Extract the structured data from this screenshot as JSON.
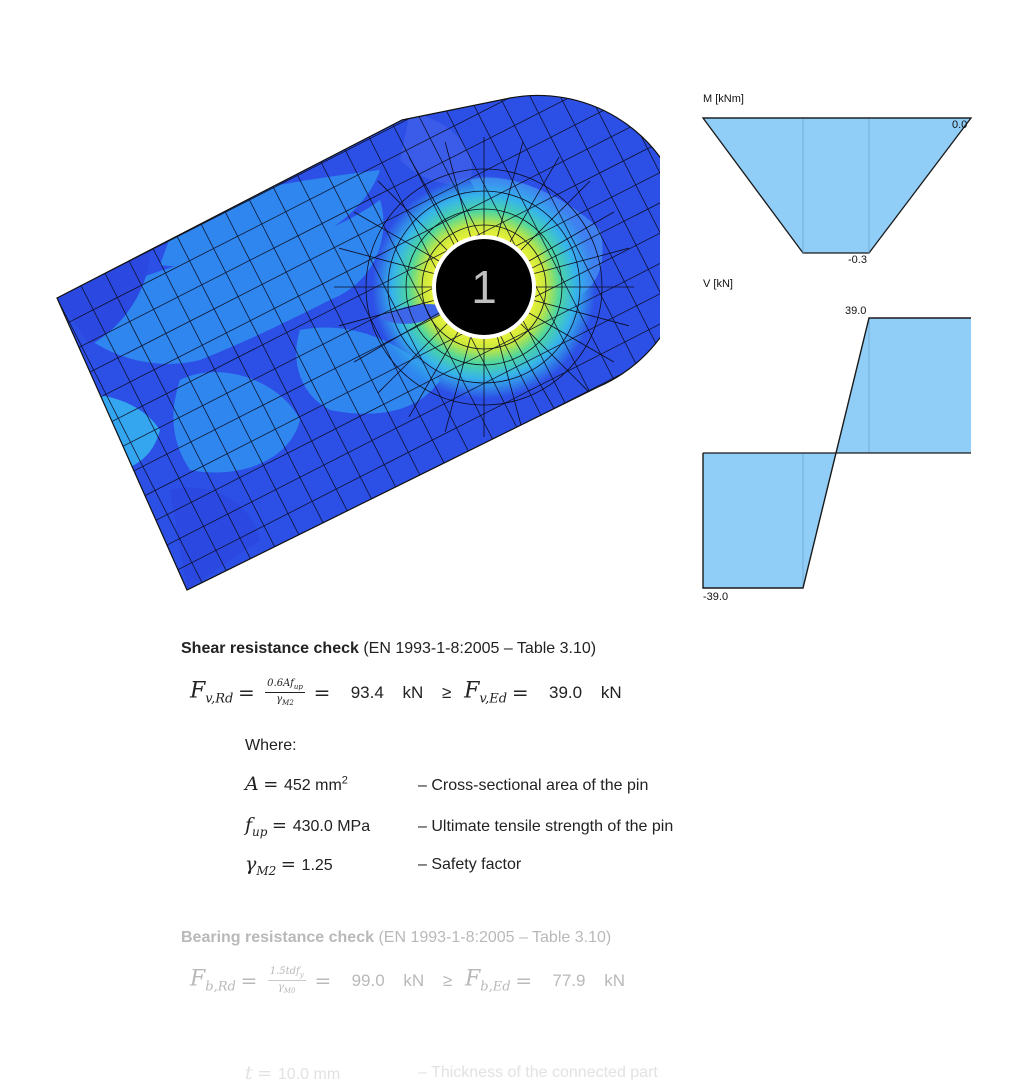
{
  "fea": {
    "node_label": "1"
  },
  "moment_diagram": {
    "axis_label": "M [kNm]",
    "values": {
      "max": "0.0",
      "min": "-0.3"
    }
  },
  "shear_diagram": {
    "axis_label": "V [kN]",
    "values": {
      "max": "39.0",
      "min": "-39.0"
    }
  },
  "shear_check": {
    "title": "Shear resistance check",
    "reference": " (EN 1993-1-8:2005 – Table 3.10)",
    "lhs_symbol": "F",
    "lhs_sub": "v,Rd",
    "frac_num": "0.6Af",
    "frac_num_sub": "up",
    "frac_den": "γ",
    "frac_den_sub": "M2",
    "resistance": "93.4",
    "unit1": "kN",
    "relation": "≥",
    "rhs_symbol": "F",
    "rhs_sub": "v,Ed",
    "effect": "39.0",
    "unit2": "kN",
    "where_label": "Where:",
    "params": [
      {
        "symbol": "A",
        "sub": "",
        "value": "452 mm",
        "sup": "2",
        "desc": "– Cross-sectional area of the pin"
      },
      {
        "symbol": "f",
        "sub": "up",
        "value": "430.0 MPa",
        "sup": "",
        "desc": "– Ultimate tensile strength of the pin"
      },
      {
        "symbol": "γ",
        "sub": "M2",
        "value": "1.25",
        "sup": "",
        "desc": "– Safety factor"
      }
    ]
  },
  "bearing_check": {
    "title": "Bearing resistance check",
    "reference": " (EN 1993-1-8:2005 – Table 3.10)",
    "lhs_symbol": "F",
    "lhs_sub": "b,Rd",
    "frac_num": "1.5tdf",
    "frac_num_sub": "y",
    "frac_den": "γ",
    "frac_den_sub": "M0",
    "resistance": "99.0",
    "unit1": "kN",
    "relation": "≥",
    "rhs_symbol": "F",
    "rhs_sub": "b,Ed",
    "effect": "77.9",
    "unit2": "kN",
    "param": {
      "symbol": "t",
      "value": "10.0 mm",
      "desc": "– Thickness of the connected part"
    }
  },
  "colors": {
    "mesh_base": "#2a4ee8",
    "mesh_light": "#2ea7ef",
    "hotspot_yellow": "#f1f23a",
    "hotspot_green": "#4fd39a",
    "diagram_fill": "#90cdf7"
  }
}
